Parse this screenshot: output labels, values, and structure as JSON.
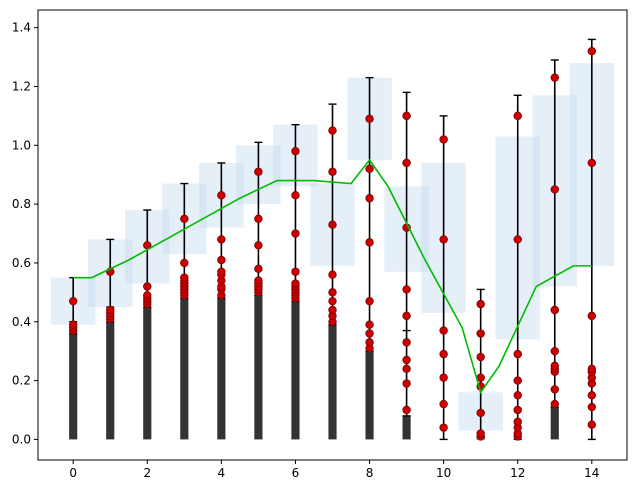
{
  "chart_data": {
    "type": "bar",
    "title": "",
    "xlabel": "",
    "ylabel": "",
    "xlim": [
      -0.95,
      14.95
    ],
    "ylim": [
      -0.07,
      1.46
    ],
    "grid": false,
    "legend": "none",
    "x_ticks": [
      0,
      2,
      4,
      6,
      8,
      10,
      12,
      14
    ],
    "y_ticks": [
      0.0,
      0.2,
      0.4,
      0.6,
      0.8,
      1.0,
      1.2,
      1.4
    ],
    "x_tick_labels": [
      "0",
      "2",
      "4",
      "6",
      "8",
      "10",
      "12",
      "14"
    ],
    "y_tick_labels": [
      "0.0",
      "0.2",
      "0.4",
      "0.6",
      "0.8",
      "1.0",
      "1.2",
      "1.4"
    ],
    "bars": {
      "color": "#333333",
      "width": 0.22,
      "x": [
        0,
        1,
        2,
        3,
        4,
        5,
        6,
        7,
        8,
        9,
        10,
        11,
        12,
        13,
        14
      ],
      "values": [
        0.36,
        0.4,
        0.45,
        0.48,
        0.48,
        0.49,
        0.47,
        0.39,
        0.3,
        0.08,
        0.0,
        0.01,
        0.0,
        0.11,
        0.0
      ]
    },
    "boxes": {
      "color": "#c6dbef",
      "opacity": 0.45,
      "items": [
        {
          "x0": -0.6,
          "x1": 0.6,
          "y0": 0.39,
          "y1": 0.55
        },
        {
          "x0": 0.4,
          "x1": 1.6,
          "y0": 0.45,
          "y1": 0.68
        },
        {
          "x0": 1.4,
          "x1": 2.6,
          "y0": 0.53,
          "y1": 0.78
        },
        {
          "x0": 2.4,
          "x1": 3.6,
          "y0": 0.63,
          "y1": 0.87
        },
        {
          "x0": 3.4,
          "x1": 4.6,
          "y0": 0.72,
          "y1": 0.94
        },
        {
          "x0": 4.4,
          "x1": 5.6,
          "y0": 0.8,
          "y1": 1.0
        },
        {
          "x0": 5.4,
          "x1": 6.6,
          "y0": 0.86,
          "y1": 1.07
        },
        {
          "x0": 6.4,
          "x1": 7.6,
          "y0": 0.59,
          "y1": 0.87
        },
        {
          "x0": 7.4,
          "x1": 8.6,
          "y0": 0.95,
          "y1": 1.23
        },
        {
          "x0": 8.4,
          "x1": 9.6,
          "y0": 0.57,
          "y1": 0.86
        },
        {
          "x0": 9.4,
          "x1": 10.6,
          "y0": 0.43,
          "y1": 0.94
        },
        {
          "x0": 10.4,
          "x1": 11.6,
          "y0": 0.03,
          "y1": 0.16
        },
        {
          "x0": 11.4,
          "x1": 12.6,
          "y0": 0.34,
          "y1": 1.03
        },
        {
          "x0": 12.4,
          "x1": 13.6,
          "y0": 0.52,
          "y1": 1.17
        },
        {
          "x0": 13.4,
          "x1": 14.6,
          "y0": 0.59,
          "y1": 1.28
        }
      ]
    },
    "error_bars": {
      "color": "#000000",
      "items": [
        {
          "x": 0,
          "low": 0.36,
          "high": 0.55,
          "ticks": [
            0.36,
            0.4,
            0.47,
            0.55
          ]
        },
        {
          "x": 1,
          "low": 0.4,
          "high": 0.68,
          "ticks": [
            0.4,
            0.45,
            0.57,
            0.68
          ]
        },
        {
          "x": 2,
          "low": 0.45,
          "high": 0.78,
          "ticks": [
            0.45,
            0.52,
            0.66,
            0.78
          ]
        },
        {
          "x": 3,
          "low": 0.48,
          "high": 0.87,
          "ticks": [
            0.48,
            0.55,
            0.6,
            0.75,
            0.87
          ]
        },
        {
          "x": 4,
          "low": 0.48,
          "high": 0.94,
          "ticks": [
            0.48,
            0.57,
            0.68,
            0.83,
            0.94
          ]
        },
        {
          "x": 5,
          "low": 0.49,
          "high": 1.01,
          "ticks": [
            0.49,
            0.58,
            0.66,
            0.75,
            0.91,
            1.01
          ]
        },
        {
          "x": 6,
          "low": 0.47,
          "high": 1.07,
          "ticks": [
            0.47,
            0.57,
            0.7,
            0.83,
            0.98,
            1.07
          ]
        },
        {
          "x": 7,
          "low": 0.39,
          "high": 1.14,
          "ticks": [
            0.39,
            0.47,
            0.56,
            0.73,
            0.91,
            1.05,
            1.14
          ]
        },
        {
          "x": 8,
          "low": 0.3,
          "high": 1.23,
          "ticks": [
            0.3,
            0.39,
            0.47,
            0.67,
            0.82,
            0.92,
            1.09,
            1.23
          ]
        },
        {
          "x": 9,
          "low": 0.08,
          "high": 1.18,
          "ticks": [
            0.08,
            0.24,
            0.37,
            0.51,
            0.72,
            0.94,
            1.1,
            1.18
          ]
        },
        {
          "x": 10,
          "low": 0.0,
          "high": 1.1,
          "ticks": [
            0.0,
            0.12,
            0.29,
            0.37,
            0.68,
            1.02,
            1.1
          ]
        },
        {
          "x": 11,
          "low": 0.01,
          "high": 0.51,
          "ticks": [
            0.01,
            0.09,
            0.21,
            0.36,
            0.46,
            0.51
          ]
        },
        {
          "x": 12,
          "low": 0.0,
          "high": 1.17,
          "ticks": [
            0.0,
            0.1,
            0.2,
            0.29,
            0.68,
            1.1,
            1.17
          ]
        },
        {
          "x": 13,
          "low": 0.11,
          "high": 1.29,
          "ticks": [
            0.11,
            0.17,
            0.3,
            0.44,
            0.85,
            1.23,
            1.29
          ]
        },
        {
          "x": 14,
          "low": 0.0,
          "high": 1.36,
          "ticks": [
            0.0,
            0.11,
            0.19,
            0.24,
            0.42,
            0.94,
            1.32,
            1.36
          ]
        }
      ]
    },
    "points": {
      "color": "#cc0000",
      "edge_color": "#7a0000",
      "series": [
        {
          "x": 0,
          "values": [
            0.37,
            0.38,
            0.39,
            0.47
          ]
        },
        {
          "x": 1,
          "values": [
            0.41,
            0.42,
            0.43,
            0.44,
            0.57
          ]
        },
        {
          "x": 2,
          "values": [
            0.46,
            0.47,
            0.48,
            0.49,
            0.52,
            0.66
          ]
        },
        {
          "x": 3,
          "values": [
            0.49,
            0.5,
            0.51,
            0.52,
            0.53,
            0.54,
            0.55,
            0.6,
            0.75
          ]
        },
        {
          "x": 4,
          "values": [
            0.49,
            0.51,
            0.52,
            0.54,
            0.56,
            0.57,
            0.61,
            0.68,
            0.83
          ]
        },
        {
          "x": 5,
          "values": [
            0.5,
            0.51,
            0.52,
            0.53,
            0.54,
            0.58,
            0.66,
            0.75,
            0.91
          ]
        },
        {
          "x": 6,
          "values": [
            0.48,
            0.49,
            0.5,
            0.51,
            0.52,
            0.53,
            0.57,
            0.7,
            0.83,
            0.98
          ]
        },
        {
          "x": 7,
          "values": [
            0.4,
            0.42,
            0.44,
            0.47,
            0.5,
            0.56,
            0.73,
            0.91,
            1.05
          ]
        },
        {
          "x": 8,
          "values": [
            0.31,
            0.33,
            0.36,
            0.39,
            0.47,
            0.67,
            0.82,
            0.92,
            1.09
          ]
        },
        {
          "x": 9,
          "values": [
            0.1,
            0.19,
            0.24,
            0.27,
            0.33,
            0.42,
            0.51,
            0.72,
            0.94,
            1.1
          ]
        },
        {
          "x": 10,
          "values": [
            0.04,
            0.12,
            0.21,
            0.29,
            0.37,
            0.68,
            1.02
          ]
        },
        {
          "x": 11,
          "values": [
            0.01,
            0.02,
            0.09,
            0.18,
            0.21,
            0.28,
            0.36,
            0.46
          ]
        },
        {
          "x": 12,
          "values": [
            0.01,
            0.02,
            0.04,
            0.06,
            0.1,
            0.15,
            0.2,
            0.29,
            0.68,
            1.1
          ]
        },
        {
          "x": 13,
          "values": [
            0.12,
            0.17,
            0.23,
            0.24,
            0.25,
            0.3,
            0.44,
            0.85,
            1.23
          ]
        },
        {
          "x": 14,
          "values": [
            0.05,
            0.11,
            0.15,
            0.19,
            0.21,
            0.23,
            0.24,
            0.42,
            0.94,
            1.32
          ]
        }
      ]
    },
    "line": {
      "color": "#00bb00",
      "x": [
        0,
        0.5,
        1.5,
        2.5,
        3.5,
        4.5,
        5.5,
        6.5,
        7.5,
        8.0,
        8.5,
        9.5,
        10.5,
        11.0,
        11.5,
        12.5,
        13.5,
        14.0
      ],
      "values": [
        0.55,
        0.55,
        0.61,
        0.68,
        0.75,
        0.82,
        0.88,
        0.88,
        0.87,
        0.95,
        0.86,
        0.61,
        0.38,
        0.16,
        0.25,
        0.52,
        0.59,
        0.59
      ]
    }
  }
}
